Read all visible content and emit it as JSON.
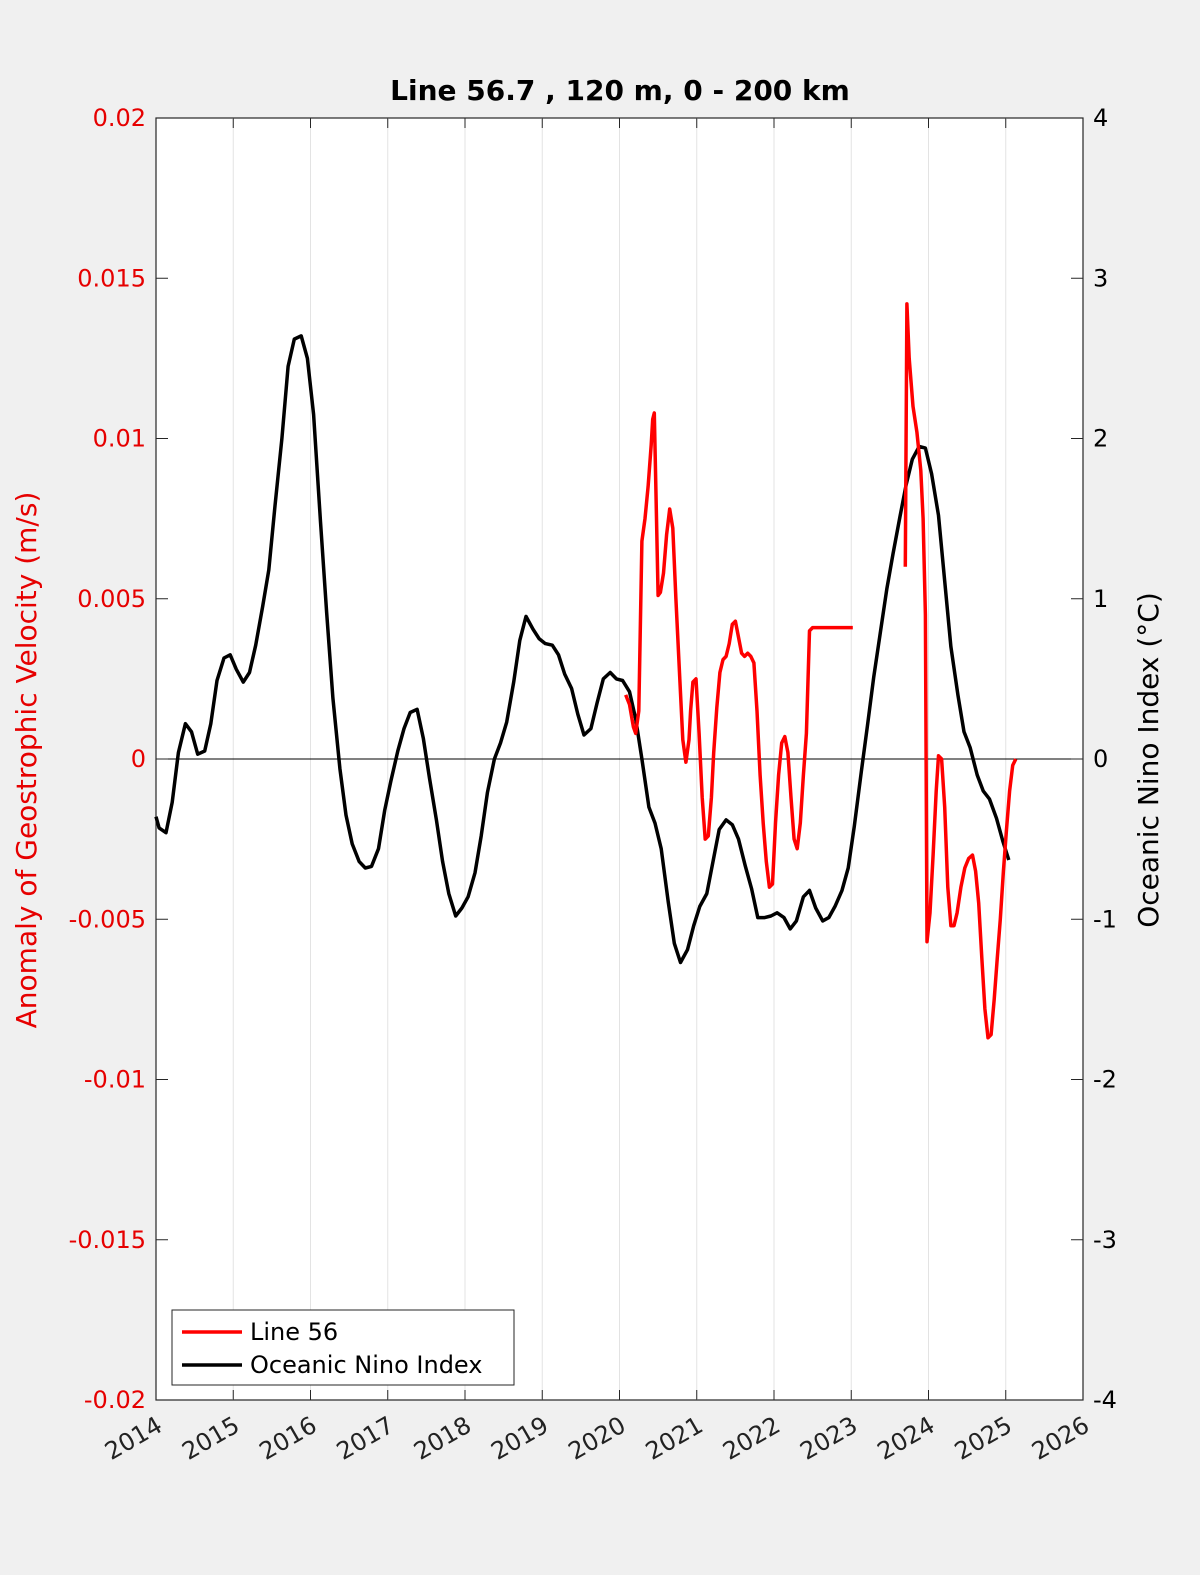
{
  "chart_data": {
    "type": "line",
    "title": "Line 56.7 , 120 m, 0 - 200 km",
    "ylabel_left": "Anomaly of Geostrophic Velocity (m/s)",
    "ylabel_right": "Oceanic Nino Index (°C)",
    "xlim": [
      2014,
      2026
    ],
    "ylim_left": [
      -0.02,
      0.02
    ],
    "ylim_right": [
      -4,
      4
    ],
    "x_ticks": [
      "2014",
      "2015",
      "2016",
      "2017",
      "2018",
      "2019",
      "2020",
      "2021",
      "2022",
      "2023",
      "2024",
      "2025",
      "2026"
    ],
    "x_tick_values": [
      2014,
      2015,
      2016,
      2017,
      2018,
      2019,
      2020,
      2021,
      2022,
      2023,
      2024,
      2025,
      2026
    ],
    "y_left_ticks": [
      "0.02",
      "0.015",
      "0.01",
      "0.005",
      "0",
      "-0.005",
      "-0.01",
      "-0.015",
      "-0.02"
    ],
    "y_left_tick_values": [
      0.02,
      0.015,
      0.01,
      0.005,
      0,
      -0.005,
      -0.01,
      -0.015,
      -0.02
    ],
    "y_right_ticks": [
      "4",
      "3",
      "2",
      "1",
      "0",
      "-1",
      "-2",
      "-3",
      "-4"
    ],
    "y_right_tick_values": [
      4,
      3,
      2,
      1,
      0,
      -1,
      -2,
      -3,
      -4
    ],
    "grid": "vertical",
    "legend_position": "bottom-left",
    "series": [
      {
        "name": "Line 56",
        "axis": "left",
        "color": "#ff0000",
        "segments": [
          {
            "x": [
              2020.08,
              2020.13,
              2020.18,
              2020.21,
              2020.25,
              2020.29,
              2020.33,
              2020.37,
              2020.41,
              2020.43,
              2020.45,
              2020.5,
              2020.53,
              2020.57,
              2020.61,
              2020.65,
              2020.69,
              2020.73,
              2020.78,
              2020.82,
              2020.86,
              2020.9,
              2020.92,
              2020.95,
              2020.99,
              2021.03,
              2021.07,
              2021.11,
              2021.15,
              2021.19,
              2021.22,
              2021.26,
              2021.3,
              2021.34,
              2021.38,
              2021.42,
              2021.46,
              2021.5,
              2021.54,
              2021.58,
              2021.62,
              2021.66,
              2021.7,
              2021.74,
              2021.78,
              2021.82,
              2021.86,
              2021.9,
              2021.94,
              2021.98,
              2022.02,
              2022.06,
              2022.1,
              2022.14,
              2022.18,
              2022.22,
              2022.26,
              2022.3,
              2022.34,
              2022.38,
              2022.42,
              2022.46,
              2022.5,
              2022.54,
              2022.58,
              2022.62,
              2022.66,
              2022.7,
              2022.74,
              2022.78,
              2022.82,
              2022.86,
              2022.9,
              2022.94,
              2022.98,
              2023.02
            ],
            "y": [
              0.002,
              0.0017,
              0.001,
              0.0008,
              0.0015,
              0.0068,
              0.0075,
              0.0085,
              0.0098,
              0.0106,
              0.0108,
              0.0051,
              0.0052,
              0.0058,
              0.007,
              0.0078,
              0.0072,
              0.005,
              0.0025,
              0.0006,
              -0.0001,
              0.0006,
              0.0015,
              0.0024,
              0.0025,
              0.0008,
              -0.0012,
              -0.0025,
              -0.0024,
              -0.0012,
              0.0002,
              0.0016,
              0.0027,
              0.0031,
              0.0032,
              0.0036,
              0.0042,
              0.0043,
              0.0038,
              0.0033,
              0.0032,
              0.0033,
              0.0032,
              0.003,
              0.0015,
              -0.0005,
              -0.002,
              -0.0032,
              -0.004,
              -0.0039,
              -0.002,
              -0.0005,
              0.0005,
              0.0007,
              0.0002,
              -0.0012,
              -0.0025,
              -0.0028,
              -0.002,
              -0.0005,
              0.0008,
              0.004,
              0.0041,
              0.0041,
              0.0041,
              0.0041,
              0.0041,
              0.0041,
              0.0041,
              0.0041,
              0.0041,
              0.0041,
              0.0041,
              0.0041,
              0.0041,
              0.0041
            ]
          },
          {
            "x": [
              2023.7,
              2023.72,
              2023.75,
              2023.8,
              2023.85,
              2023.9,
              2023.93,
              2023.96,
              2023.98,
              2024.02,
              2024.06,
              2024.1,
              2024.13,
              2024.17,
              2024.21,
              2024.25,
              2024.29,
              2024.33,
              2024.37,
              2024.42,
              2024.47,
              2024.52,
              2024.57,
              2024.61,
              2024.65,
              2024.69,
              2024.73,
              2024.77,
              2024.81,
              2024.85,
              2024.89,
              2024.93,
              2024.97,
              2025.01,
              2025.05,
              2025.09,
              2025.13
            ],
            "y": [
              0.006,
              0.0142,
              0.0125,
              0.011,
              0.0102,
              0.009,
              0.0075,
              0.0045,
              -0.0057,
              -0.0048,
              -0.003,
              -0.001,
              0.0001,
              0.0,
              -0.0015,
              -0.004,
              -0.0052,
              -0.0052,
              -0.0048,
              -0.004,
              -0.0034,
              -0.0031,
              -0.003,
              -0.0035,
              -0.0045,
              -0.0062,
              -0.0078,
              -0.0087,
              -0.0086,
              -0.0075,
              -0.0062,
              -0.005,
              -0.0035,
              -0.0022,
              -0.001,
              -0.0002,
              0.0
            ]
          }
        ]
      },
      {
        "name": "Oceanic Nino Index",
        "axis": "right",
        "color": "#000000",
        "x": [
          2014.0,
          2014.04,
          2014.13,
          2014.21,
          2014.29,
          2014.38,
          2014.46,
          2014.54,
          2014.63,
          2014.71,
          2014.79,
          2014.88,
          2014.96,
          2015.04,
          2015.13,
          2015.21,
          2015.29,
          2015.38,
          2015.46,
          2015.54,
          2015.63,
          2015.71,
          2015.79,
          2015.88,
          2015.96,
          2016.04,
          2016.13,
          2016.21,
          2016.29,
          2016.38,
          2016.46,
          2016.54,
          2016.63,
          2016.71,
          2016.79,
          2016.88,
          2016.96,
          2017.04,
          2017.13,
          2017.21,
          2017.29,
          2017.38,
          2017.46,
          2017.54,
          2017.63,
          2017.71,
          2017.79,
          2017.88,
          2017.96,
          2018.04,
          2018.13,
          2018.21,
          2018.29,
          2018.38,
          2018.46,
          2018.54,
          2018.63,
          2018.71,
          2018.79,
          2018.88,
          2018.96,
          2019.04,
          2019.13,
          2019.21,
          2019.29,
          2019.38,
          2019.46,
          2019.54,
          2019.63,
          2019.71,
          2019.79,
          2019.88,
          2019.96,
          2020.04,
          2020.13,
          2020.21,
          2020.29,
          2020.38,
          2020.46,
          2020.54,
          2020.63,
          2020.71,
          2020.79,
          2020.88,
          2020.96,
          2021.04,
          2021.13,
          2021.21,
          2021.29,
          2021.38,
          2021.46,
          2021.54,
          2021.63,
          2021.71,
          2021.79,
          2021.88,
          2021.96,
          2022.04,
          2022.13,
          2022.21,
          2022.29,
          2022.38,
          2022.46,
          2022.54,
          2022.63,
          2022.71,
          2022.79,
          2022.88,
          2022.96,
          2023.04,
          2023.13,
          2023.21,
          2023.29,
          2023.38,
          2023.46,
          2023.54,
          2023.63,
          2023.71,
          2023.79,
          2023.88,
          2023.96,
          2024.04,
          2024.13,
          2024.21,
          2024.29,
          2024.38,
          2024.46,
          2024.54,
          2024.63,
          2024.71,
          2024.79,
          2024.88,
          2024.96,
          2025.04
        ],
        "y": [
          -0.36,
          -0.43,
          -0.46,
          -0.27,
          0.04,
          0.22,
          0.17,
          0.03,
          0.05,
          0.22,
          0.49,
          0.63,
          0.65,
          0.56,
          0.48,
          0.54,
          0.71,
          0.95,
          1.18,
          1.58,
          2.0,
          2.45,
          2.62,
          2.64,
          2.5,
          2.15,
          1.48,
          0.91,
          0.38,
          -0.06,
          -0.35,
          -0.53,
          -0.64,
          -0.68,
          -0.67,
          -0.56,
          -0.32,
          -0.14,
          0.05,
          0.19,
          0.29,
          0.31,
          0.13,
          -0.12,
          -0.38,
          -0.64,
          -0.84,
          -0.98,
          -0.93,
          -0.86,
          -0.71,
          -0.48,
          -0.21,
          0.0,
          0.1,
          0.23,
          0.48,
          0.74,
          0.89,
          0.81,
          0.75,
          0.72,
          0.71,
          0.65,
          0.53,
          0.44,
          0.28,
          0.15,
          0.19,
          0.35,
          0.5,
          0.54,
          0.5,
          0.49,
          0.42,
          0.25,
          0.0,
          -0.3,
          -0.4,
          -0.56,
          -0.89,
          -1.15,
          -1.27,
          -1.19,
          -1.04,
          -0.92,
          -0.84,
          -0.64,
          -0.44,
          -0.38,
          -0.41,
          -0.5,
          -0.67,
          -0.81,
          -0.99,
          -0.99,
          -0.98,
          -0.96,
          -0.99,
          -1.06,
          -1.01,
          -0.86,
          -0.82,
          -0.93,
          -1.01,
          -0.99,
          -0.92,
          -0.82,
          -0.68,
          -0.42,
          -0.08,
          0.21,
          0.51,
          0.8,
          1.06,
          1.28,
          1.51,
          1.71,
          1.87,
          1.95,
          1.94,
          1.78,
          1.52,
          1.11,
          0.7,
          0.4,
          0.17,
          0.07,
          -0.1,
          -0.2,
          -0.25,
          -0.37,
          -0.51,
          -0.63
        ]
      }
    ]
  }
}
